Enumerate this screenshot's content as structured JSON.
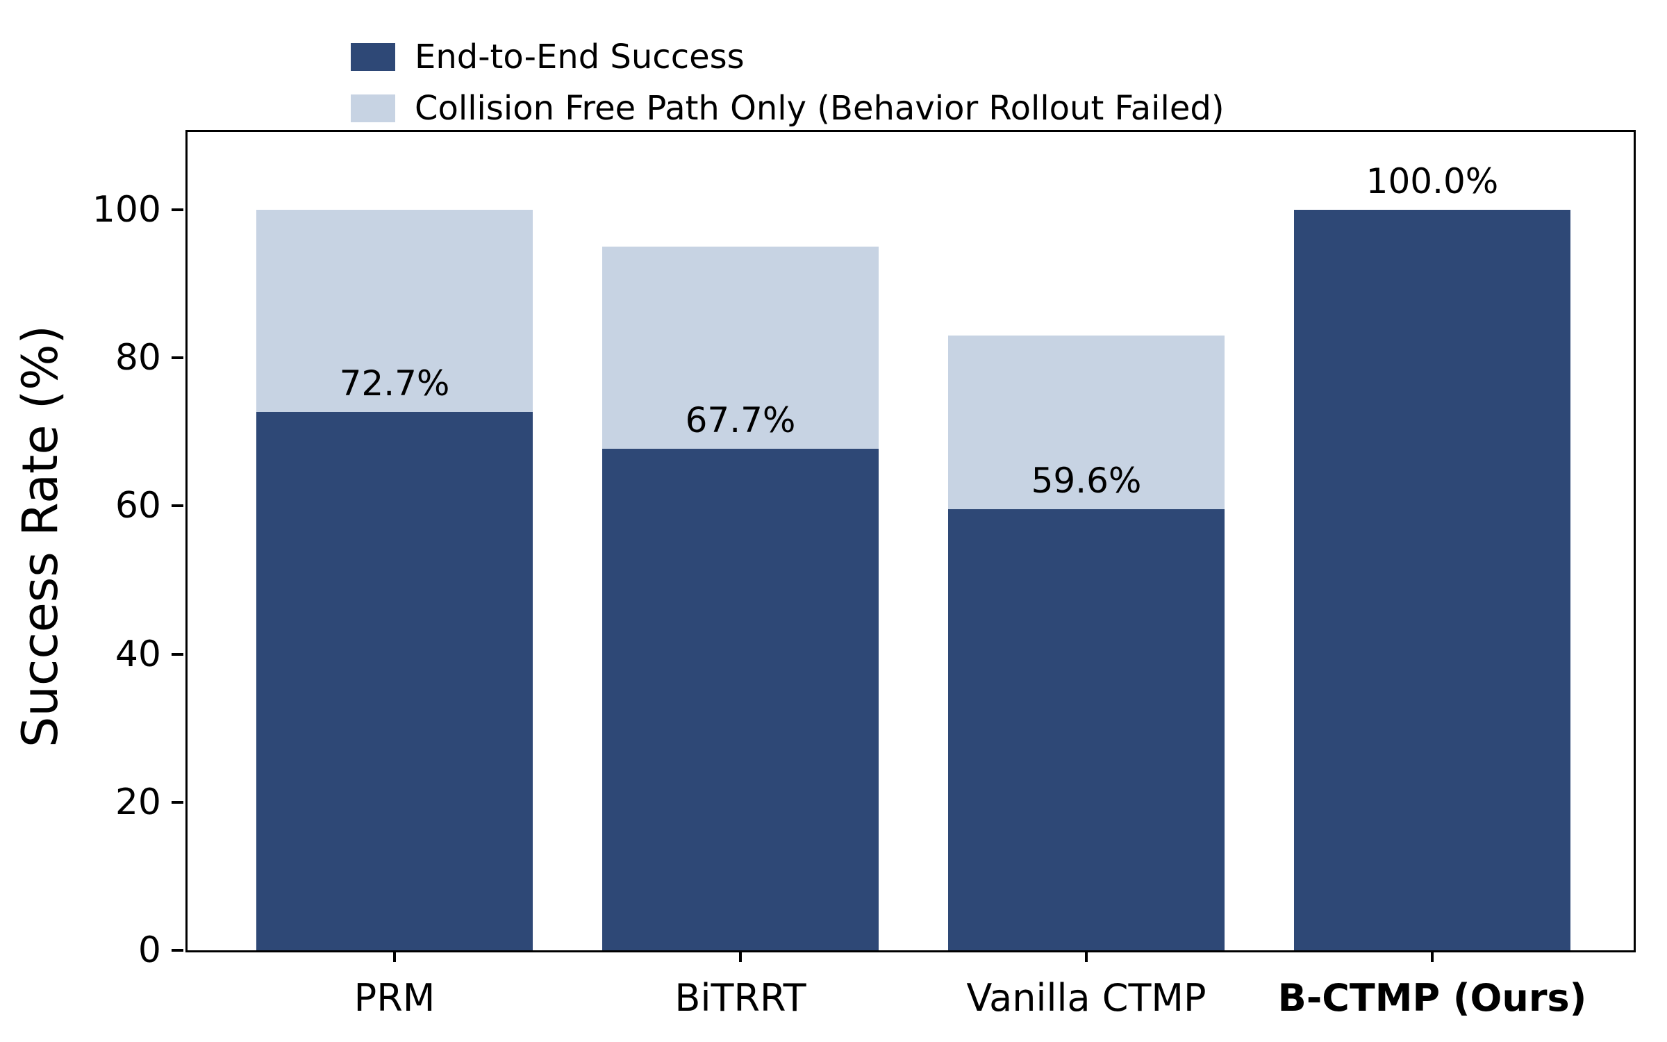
{
  "chart_data": {
    "type": "bar",
    "stacked": true,
    "title": "",
    "ylabel": "Success Rate (%)",
    "xlabel": "",
    "categories": [
      "PRM",
      "BiTRRT",
      "Vanilla CTMP",
      "B-CTMP (Ours)"
    ],
    "bold_categories": [
      "B-CTMP (Ours)"
    ],
    "series": [
      {
        "name": "End-to-End Success",
        "color": "#2e4876",
        "values": [
          72.7,
          67.7,
          59.6,
          100.0
        ]
      },
      {
        "name": "Collision Free Path Only (Behavior Rollout Failed)",
        "color": "#c7d3e3",
        "values": [
          27.3,
          27.3,
          23.4,
          0.0
        ]
      }
    ],
    "stack_totals": [
      100.0,
      95.0,
      83.0,
      100.0
    ],
    "bar_value_labels": [
      "72.7%",
      "67.7%",
      "59.6%",
      "100.0%"
    ],
    "yticks": [
      0,
      20,
      40,
      60,
      80,
      100
    ],
    "ytick_labels": [
      "0",
      "20",
      "40",
      "60",
      "80",
      "100"
    ],
    "ylim": [
      0,
      110.5
    ],
    "grid": false,
    "legend_position": "top-left, above plot, no frame",
    "colors": {
      "end_to_end": "#2e4876",
      "collision_free_only": "#c7d3e3",
      "axis": "#000000",
      "background": "#ffffff"
    }
  }
}
